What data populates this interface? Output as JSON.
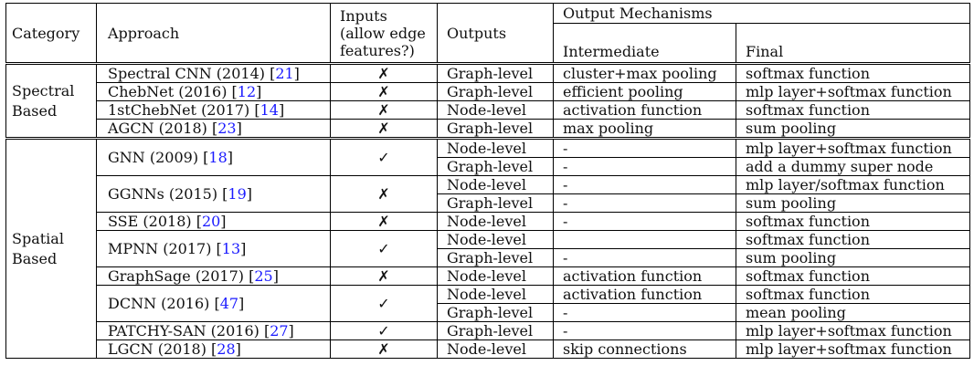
{
  "headers": {
    "category": "Category",
    "approach": "Approach",
    "inputs_line1": "Inputs",
    "inputs_line2": "(allow edge",
    "inputs_line3": "features?)",
    "outputs": "Outputs",
    "output_mechanisms": "Output Mechanisms",
    "intermediate": "Intermediate",
    "final": "Final"
  },
  "groups": [
    {
      "category_line1": "Spectral",
      "category_line2": "Based",
      "approaches": [
        {
          "name": "Spectral CNN (2014)",
          "cite": "21",
          "edge": "✗",
          "outputs": [
            {
              "output": "Graph-level",
              "intermediate": "cluster+max pooling",
              "final": "softmax function"
            }
          ]
        },
        {
          "name": "ChebNet (2016)",
          "cite": "12",
          "edge": "✗",
          "outputs": [
            {
              "output": "Graph-level",
              "intermediate": "efficient pooling",
              "final": "mlp layer+softmax function"
            }
          ]
        },
        {
          "name": "1stChebNet (2017)",
          "cite": "14",
          "edge": "✗",
          "outputs": [
            {
              "output": "Node-level",
              "intermediate": "activation function",
              "final": "softmax function"
            }
          ]
        },
        {
          "name": "AGCN (2018)",
          "cite": "23",
          "edge": "✗",
          "outputs": [
            {
              "output": "Graph-level",
              "intermediate": "max pooling",
              "final": "sum pooling"
            }
          ]
        }
      ]
    },
    {
      "category_line1": "Spatial",
      "category_line2": "Based",
      "approaches": [
        {
          "name": "GNN (2009)",
          "cite": "18",
          "edge": "✓",
          "outputs": [
            {
              "output": "Node-level",
              "intermediate": "-",
              "final": "mlp layer+softmax function"
            },
            {
              "output": "Graph-level",
              "intermediate": "-",
              "final": "add a dummy super node"
            }
          ]
        },
        {
          "name": "GGNNs (2015)",
          "cite": "19",
          "edge": "✗",
          "outputs": [
            {
              "output": "Node-level",
              "intermediate": "-",
              "final": "mlp layer/softmax function"
            },
            {
              "output": "Graph-level",
              "intermediate": "-",
              "final": "sum pooling"
            }
          ]
        },
        {
          "name": "SSE (2018)",
          "cite": "20",
          "edge": "✗",
          "outputs": [
            {
              "output": "Node-level",
              "intermediate": "-",
              "final": "softmax function"
            }
          ]
        },
        {
          "name": "MPNN (2017)",
          "cite": "13",
          "edge": "✓",
          "outputs": [
            {
              "output": "Node-level",
              "intermediate": "",
              "final": "softmax function"
            },
            {
              "output": "Graph-level",
              "intermediate": "-",
              "final": "sum pooling"
            }
          ]
        },
        {
          "name": "GraphSage (2017)",
          "cite": "25",
          "edge": "✗",
          "outputs": [
            {
              "output": "Node-level",
              "intermediate": "activation function",
              "final": "softmax function"
            }
          ]
        },
        {
          "name": "DCNN (2016)",
          "cite": "47",
          "edge": "✓",
          "outputs": [
            {
              "output": "Node-level",
              "intermediate": "activation function",
              "final": "softmax function"
            },
            {
              "output": "Graph-level",
              "intermediate": "-",
              "final": "mean pooling"
            }
          ]
        },
        {
          "name": "PATCHY-SAN (2016)",
          "cite": "27",
          "edge": "✓",
          "outputs": [
            {
              "output": "Graph-level",
              "intermediate": "-",
              "final": "mlp layer+softmax function"
            }
          ]
        },
        {
          "name": "LGCN (2018)",
          "cite": "28",
          "edge": "✗",
          "outputs": [
            {
              "output": "Node-level",
              "intermediate": "skip connections",
              "final": "mlp layer+softmax function"
            }
          ]
        }
      ]
    }
  ]
}
